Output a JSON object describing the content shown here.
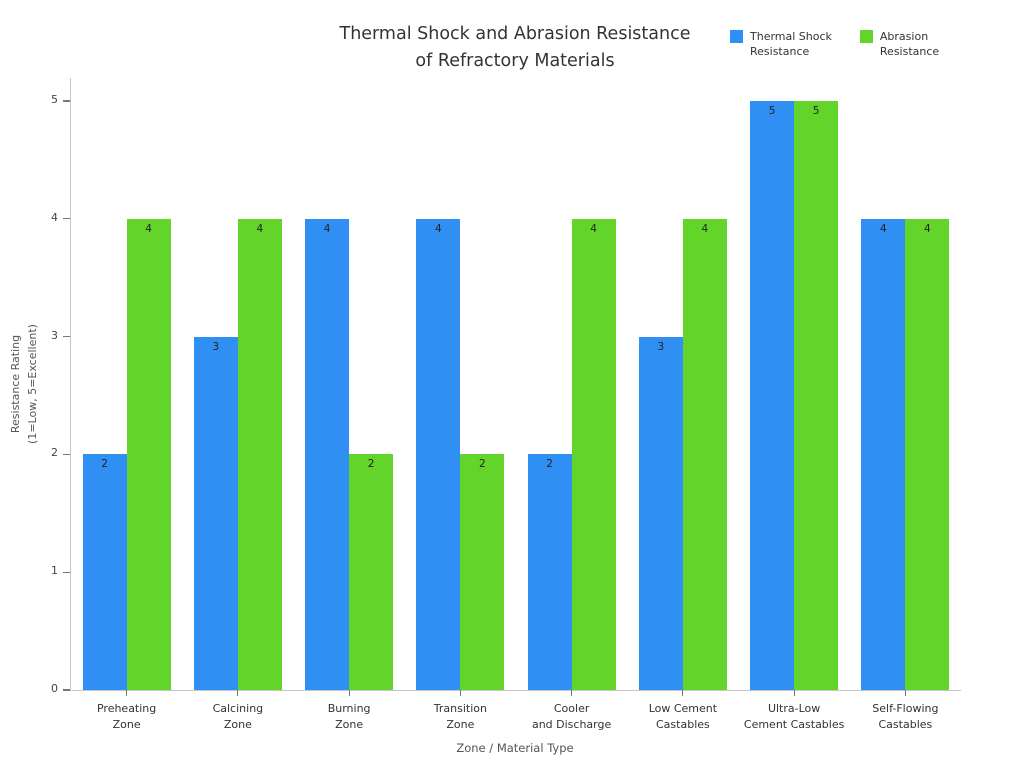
{
  "page": {
    "background": "#ffffff"
  },
  "chart_data": {
    "type": "bar",
    "title": "Thermal Shock and Abrasion Resistance\nof Refractory Materials",
    "xlabel": "Zone / Material Type",
    "ylabel": "Resistance Rating\n(1=Low, 5=Excellent)",
    "categories": [
      "Preheating\nZone",
      "Calcining\nZone",
      "Burning\nZone",
      "Transition\nZone",
      "Cooler\nand Discharge",
      "Low Cement\nCastables",
      "Ultra-Low\nCement Castables",
      "Self-Flowing\nCastables"
    ],
    "series": [
      {
        "name": "Thermal Shock\nResistance",
        "color": "#2f8ff2",
        "values": [
          2,
          3,
          4,
          4,
          2,
          3,
          5,
          4
        ]
      },
      {
        "name": "Abrasion\nResistance",
        "color": "#63d52a",
        "values": [
          4,
          4,
          2,
          2,
          4,
          4,
          5,
          4
        ]
      }
    ],
    "ylim": [
      0,
      5
    ],
    "yticks": [
      0,
      1,
      2,
      3,
      4,
      5
    ],
    "grid": false,
    "legend_position": "top-right",
    "bar_value_labels": true,
    "axis_color": "#c6c6c6",
    "tick_color": "#777777",
    "text_color": "#333333"
  }
}
